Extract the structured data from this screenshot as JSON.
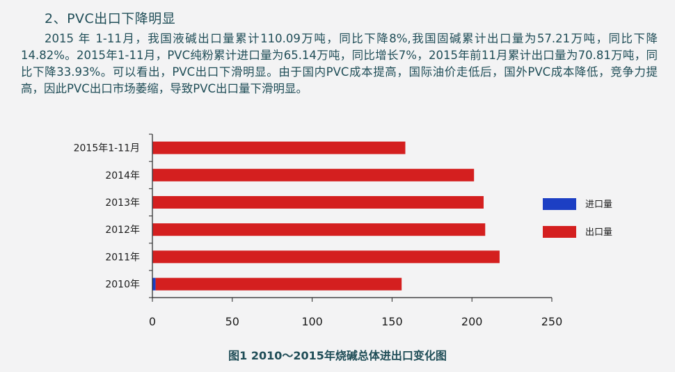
{
  "heading": "2、PVC出口下降明显",
  "paragraph": "2015 年 1-11月，我国液碱出口量累计110.09万吨，同比下降8%,我国固碱累计出口量为57.21万吨，同比下降14.82%。2015年1-11月，PVC纯粉累计进口量为65.14万吨，同比增长7%，2015年前11月累计出口量为70.81万吨，同比下降33.93%。可以看出，PVC出口下滑明显。由于国内PVC成本提高，国际油价走低后，国外PVC成本降低，竞争力提高，因此PVC出口市场萎缩，导致PVC出口量下滑明显。",
  "caption": "图1 2010～2015年烧碱总体进出口变化图",
  "chart_data": {
    "type": "bar",
    "orientation": "horizontal",
    "stacked": true,
    "categories": [
      "2015年1-11月",
      "2014年",
      "2013年",
      "2012年",
      "2011年",
      "2010年"
    ],
    "series": [
      {
        "name": "进口量",
        "color": "#1c3fc4",
        "values": [
          0.3,
          0.3,
          0.3,
          0.3,
          0.3,
          2.0
        ]
      },
      {
        "name": "出口量",
        "color": "#d41f1f",
        "values": [
          158,
          201,
          207,
          208,
          217,
          154
        ]
      }
    ],
    "xlim": [
      0,
      250
    ],
    "xticks": [
      0,
      50,
      100,
      150,
      200,
      250
    ],
    "grid": false,
    "legend_position": "right"
  }
}
